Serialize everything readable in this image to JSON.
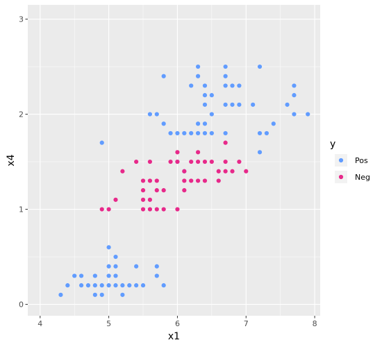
{
  "chart_data": {
    "type": "scatter",
    "title": "",
    "xlabel": "x1",
    "ylabel": "x4",
    "xlim": [
      3.82,
      8.08
    ],
    "ylim": [
      -0.12,
      3.15
    ],
    "x_ticks": [
      4,
      5,
      6,
      7,
      8
    ],
    "y_ticks": [
      0,
      1,
      2,
      3
    ],
    "x_tick_labels": [
      "4",
      "5",
      "6",
      "7",
      "8"
    ],
    "y_tick_labels": [
      "0",
      "1",
      "2",
      "3"
    ],
    "grid": true,
    "legend": {
      "title": "y",
      "placement": "right"
    },
    "series": [
      {
        "name": "Pos",
        "color": "#619CFF",
        "points": [
          [
            4.3,
            0.1
          ],
          [
            4.4,
            0.2
          ],
          [
            4.5,
            0.3
          ],
          [
            4.6,
            0.2
          ],
          [
            4.6,
            0.3
          ],
          [
            4.7,
            0.2
          ],
          [
            4.8,
            0.2
          ],
          [
            4.8,
            0.1
          ],
          [
            4.8,
            0.3
          ],
          [
            4.9,
            0.2
          ],
          [
            4.9,
            0.1
          ],
          [
            5.0,
            0.2
          ],
          [
            5.0,
            0.3
          ],
          [
            5.0,
            0.4
          ],
          [
            5.0,
            0.6
          ],
          [
            5.1,
            0.2
          ],
          [
            5.1,
            0.3
          ],
          [
            5.1,
            0.4
          ],
          [
            5.1,
            0.5
          ],
          [
            5.2,
            0.2
          ],
          [
            5.2,
            0.1
          ],
          [
            5.3,
            0.2
          ],
          [
            5.4,
            0.2
          ],
          [
            5.4,
            0.4
          ],
          [
            5.5,
            0.2
          ],
          [
            5.7,
            0.3
          ],
          [
            5.7,
            0.4
          ],
          [
            5.8,
            0.2
          ],
          [
            4.9,
            1.7
          ],
          [
            5.6,
            2.0
          ],
          [
            5.7,
            2.0
          ],
          [
            5.8,
            1.9
          ],
          [
            5.8,
            2.4
          ],
          [
            5.9,
            1.8
          ],
          [
            6.0,
            1.8
          ],
          [
            6.0,
            1.5
          ],
          [
            6.1,
            1.8
          ],
          [
            6.1,
            1.4
          ],
          [
            6.2,
            1.8
          ],
          [
            6.2,
            2.3
          ],
          [
            6.3,
            1.8
          ],
          [
            6.3,
            1.9
          ],
          [
            6.3,
            2.4
          ],
          [
            6.3,
            2.5
          ],
          [
            6.4,
            1.8
          ],
          [
            6.4,
            1.9
          ],
          [
            6.4,
            2.1
          ],
          [
            6.4,
            2.2
          ],
          [
            6.4,
            2.3
          ],
          [
            6.5,
            1.8
          ],
          [
            6.5,
            2.0
          ],
          [
            6.5,
            2.2
          ],
          [
            6.7,
            1.8
          ],
          [
            6.7,
            2.1
          ],
          [
            6.7,
            2.3
          ],
          [
            6.7,
            2.4
          ],
          [
            6.7,
            2.5
          ],
          [
            6.8,
            2.1
          ],
          [
            6.8,
            2.3
          ],
          [
            6.9,
            2.1
          ],
          [
            6.9,
            2.3
          ],
          [
            7.1,
            2.1
          ],
          [
            7.2,
            1.6
          ],
          [
            7.2,
            1.8
          ],
          [
            7.2,
            2.5
          ],
          [
            7.3,
            1.8
          ],
          [
            7.4,
            1.9
          ],
          [
            7.6,
            2.1
          ],
          [
            7.7,
            2.0
          ],
          [
            7.7,
            2.2
          ],
          [
            7.7,
            2.3
          ],
          [
            7.9,
            2.0
          ]
        ]
      },
      {
        "name": "Neg",
        "color": "#E7298A",
        "points": [
          [
            4.9,
            1.0
          ],
          [
            5.0,
            1.0
          ],
          [
            5.1,
            1.1
          ],
          [
            5.2,
            1.4
          ],
          [
            5.4,
            1.5
          ],
          [
            5.5,
            1.0
          ],
          [
            5.5,
            1.1
          ],
          [
            5.5,
            1.2
          ],
          [
            5.5,
            1.3
          ],
          [
            5.6,
            1.0
          ],
          [
            5.6,
            1.1
          ],
          [
            5.6,
            1.3
          ],
          [
            5.6,
            1.5
          ],
          [
            5.7,
            1.0
          ],
          [
            5.7,
            1.2
          ],
          [
            5.7,
            1.3
          ],
          [
            5.8,
            1.0
          ],
          [
            5.8,
            1.2
          ],
          [
            5.9,
            1.5
          ],
          [
            6.0,
            1.0
          ],
          [
            6.0,
            1.5
          ],
          [
            6.0,
            1.6
          ],
          [
            6.1,
            1.2
          ],
          [
            6.1,
            1.3
          ],
          [
            6.1,
            1.4
          ],
          [
            6.2,
            1.3
          ],
          [
            6.2,
            1.5
          ],
          [
            6.3,
            1.3
          ],
          [
            6.3,
            1.5
          ],
          [
            6.3,
            1.6
          ],
          [
            6.4,
            1.3
          ],
          [
            6.4,
            1.5
          ],
          [
            6.5,
            1.5
          ],
          [
            6.6,
            1.3
          ],
          [
            6.6,
            1.4
          ],
          [
            6.7,
            1.4
          ],
          [
            6.7,
            1.5
          ],
          [
            6.7,
            1.7
          ],
          [
            6.8,
            1.4
          ],
          [
            6.9,
            1.5
          ],
          [
            7.0,
            1.4
          ]
        ]
      }
    ]
  }
}
